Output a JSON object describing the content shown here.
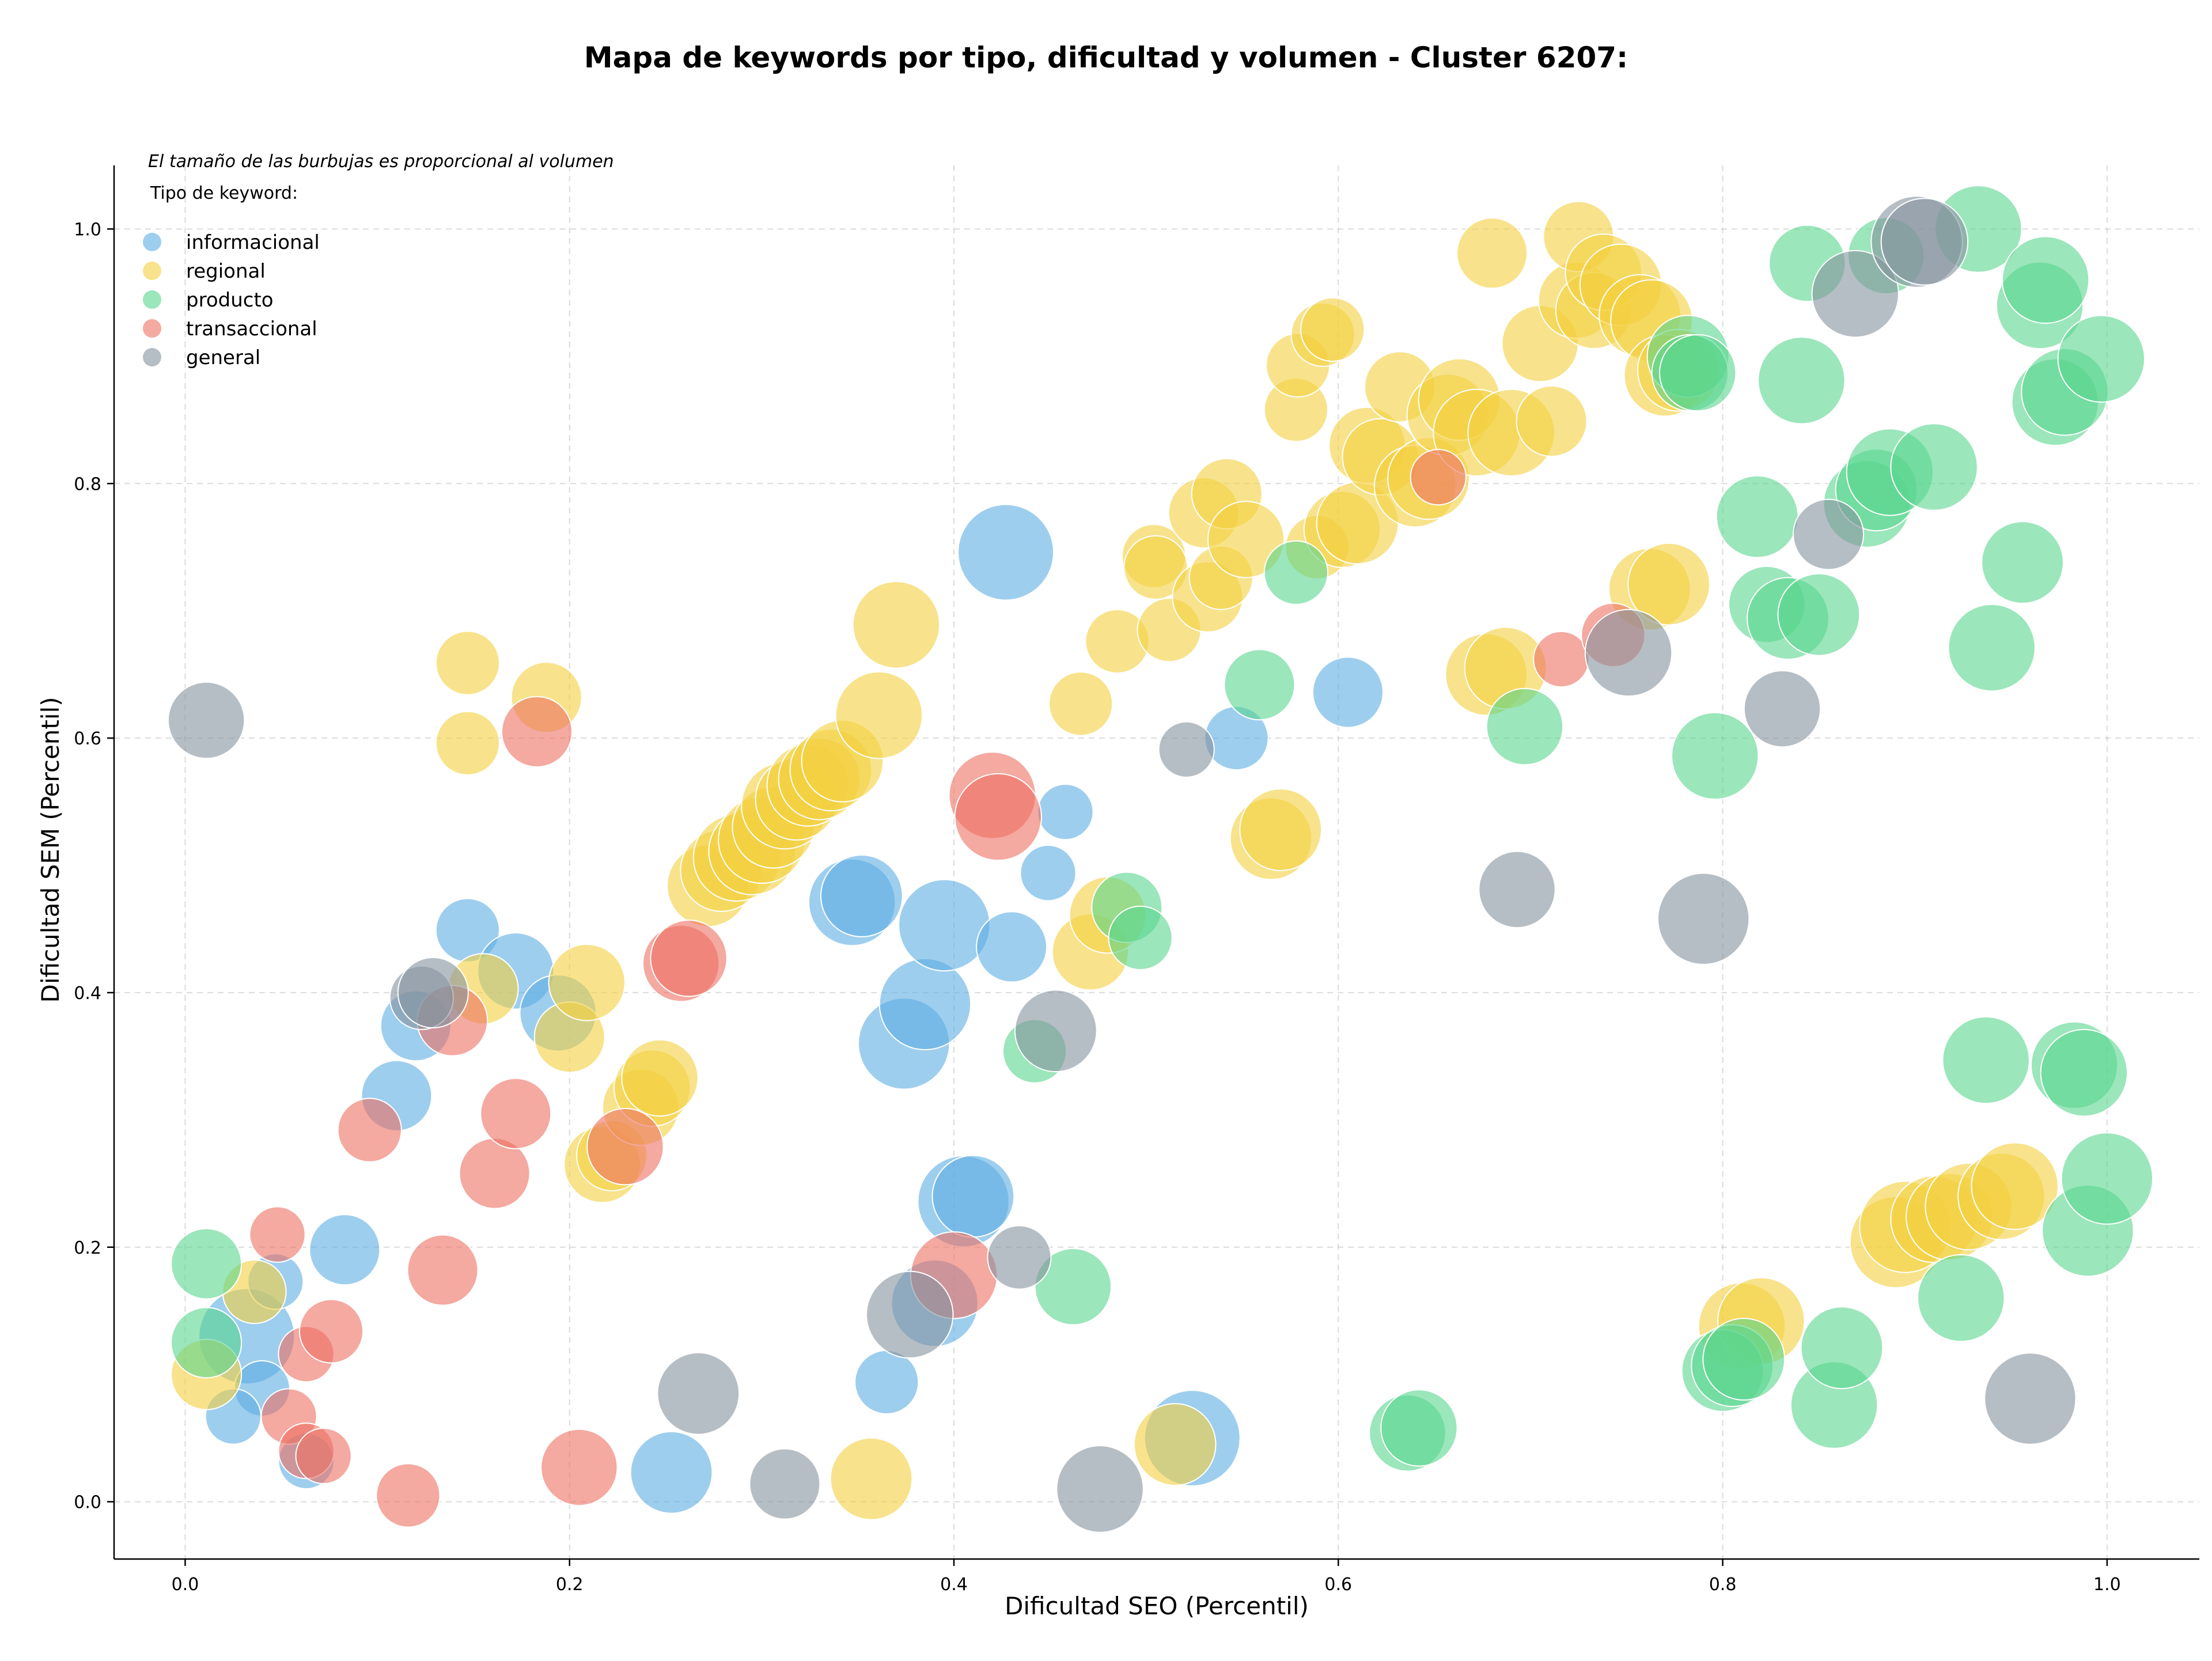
{
  "chart_data": {
    "type": "scatter",
    "title": "Mapa de keywords por tipo, dificultad y volumen - Cluster 6207:",
    "xlabel": "Dificultad SEO (Percentil)",
    "ylabel": "Dificultad SEM (Percentil)",
    "note": "El tamaño de las burbujas es proporcional al volumen",
    "legend_title": "Tipo de keyword:",
    "legend_position": "top-left",
    "xlim": [
      -0.037,
      1.048
    ],
    "ylim": [
      -0.045,
      1.05
    ],
    "xticks": [
      0.0,
      0.2,
      0.4,
      0.6,
      0.8,
      1.0
    ],
    "yticks": [
      0.0,
      0.2,
      0.4,
      0.6,
      0.8,
      1.0
    ],
    "xtick_labels": [
      "0.0",
      "0.2",
      "0.4",
      "0.6",
      "0.8",
      "1.0"
    ],
    "ytick_labels": [
      "0.0",
      "0.2",
      "0.4",
      "0.6",
      "0.8",
      "1.0"
    ],
    "grid": true,
    "size_scale_note": "s = relative volume (1 = smallest, 10 = largest)",
    "series": [
      {
        "name": "informacional",
        "color": "#5dade2",
        "points": [
          {
            "x": 0.032,
            "y": 0.13,
            "s": 9
          },
          {
            "x": 0.04,
            "y": 0.089,
            "s": 2
          },
          {
            "x": 0.047,
            "y": 0.173,
            "s": 2
          },
          {
            "x": 0.025,
            "y": 0.067,
            "s": 2
          },
          {
            "x": 0.063,
            "y": 0.032,
            "s": 2
          },
          {
            "x": 0.083,
            "y": 0.198,
            "s": 4
          },
          {
            "x": 0.11,
            "y": 0.319,
            "s": 4
          },
          {
            "x": 0.12,
            "y": 0.374,
            "s": 4
          },
          {
            "x": 0.147,
            "y": 0.449,
            "s": 3
          },
          {
            "x": 0.172,
            "y": 0.417,
            "s": 5
          },
          {
            "x": 0.194,
            "y": 0.384,
            "s": 5
          },
          {
            "x": 0.253,
            "y": 0.023,
            "s": 6
          },
          {
            "x": 0.365,
            "y": 0.094,
            "s": 3
          },
          {
            "x": 0.347,
            "y": 0.471,
            "s": 7
          },
          {
            "x": 0.352,
            "y": 0.476,
            "s": 6
          },
          {
            "x": 0.374,
            "y": 0.36,
            "s": 8
          },
          {
            "x": 0.385,
            "y": 0.391,
            "s": 8
          },
          {
            "x": 0.395,
            "y": 0.453,
            "s": 8
          },
          {
            "x": 0.39,
            "y": 0.156,
            "s": 7
          },
          {
            "x": 0.405,
            "y": 0.236,
            "s": 8
          },
          {
            "x": 0.41,
            "y": 0.24,
            "s": 6
          },
          {
            "x": 0.43,
            "y": 0.436,
            "s": 4
          },
          {
            "x": 0.427,
            "y": 0.746,
            "s": 9
          },
          {
            "x": 0.449,
            "y": 0.494,
            "s": 2
          },
          {
            "x": 0.458,
            "y": 0.542,
            "s": 2
          },
          {
            "x": 0.524,
            "y": 0.05,
            "s": 9
          },
          {
            "x": 0.547,
            "y": 0.6,
            "s": 3
          },
          {
            "x": 0.605,
            "y": 0.636,
            "s": 4
          }
        ]
      },
      {
        "name": "regional",
        "color": "#f4d03f",
        "points": [
          {
            "x": 0.011,
            "y": 0.1,
            "s": 4
          },
          {
            "x": 0.036,
            "y": 0.165,
            "s": 3
          },
          {
            "x": 0.147,
            "y": 0.659,
            "s": 3
          },
          {
            "x": 0.147,
            "y": 0.596,
            "s": 3
          },
          {
            "x": 0.155,
            "y": 0.403,
            "s": 4
          },
          {
            "x": 0.188,
            "y": 0.632,
            "s": 4
          },
          {
            "x": 0.2,
            "y": 0.365,
            "s": 4
          },
          {
            "x": 0.209,
            "y": 0.408,
            "s": 5
          },
          {
            "x": 0.217,
            "y": 0.265,
            "s": 5
          },
          {
            "x": 0.222,
            "y": 0.272,
            "s": 4
          },
          {
            "x": 0.237,
            "y": 0.31,
            "s": 5
          },
          {
            "x": 0.243,
            "y": 0.325,
            "s": 5
          },
          {
            "x": 0.247,
            "y": 0.333,
            "s": 5
          },
          {
            "x": 0.272,
            "y": 0.484,
            "s": 6
          },
          {
            "x": 0.279,
            "y": 0.496,
            "s": 6
          },
          {
            "x": 0.287,
            "y": 0.506,
            "s": 7
          },
          {
            "x": 0.295,
            "y": 0.511,
            "s": 7
          },
          {
            "x": 0.3,
            "y": 0.52,
            "s": 7
          },
          {
            "x": 0.306,
            "y": 0.53,
            "s": 6
          },
          {
            "x": 0.312,
            "y": 0.547,
            "s": 7
          },
          {
            "x": 0.318,
            "y": 0.552,
            "s": 6
          },
          {
            "x": 0.324,
            "y": 0.563,
            "s": 6
          },
          {
            "x": 0.33,
            "y": 0.568,
            "s": 6
          },
          {
            "x": 0.336,
            "y": 0.575,
            "s": 6
          },
          {
            "x": 0.342,
            "y": 0.582,
            "s": 6
          },
          {
            "x": 0.361,
            "y": 0.618,
            "s": 7
          },
          {
            "x": 0.37,
            "y": 0.689,
            "s": 7
          },
          {
            "x": 0.357,
            "y": 0.018,
            "s": 6
          },
          {
            "x": 0.466,
            "y": 0.627,
            "s": 3
          },
          {
            "x": 0.471,
            "y": 0.432,
            "s": 5
          },
          {
            "x": 0.48,
            "y": 0.461,
            "s": 5
          },
          {
            "x": 0.485,
            "y": 0.676,
            "s": 3
          },
          {
            "x": 0.504,
            "y": 0.743,
            "s": 3
          },
          {
            "x": 0.505,
            "y": 0.734,
            "s": 3
          },
          {
            "x": 0.512,
            "y": 0.685,
            "s": 3
          },
          {
            "x": 0.515,
            "y": 0.045,
            "s": 6
          },
          {
            "x": 0.532,
            "y": 0.711,
            "s": 4
          },
          {
            "x": 0.53,
            "y": 0.777,
            "s": 4
          },
          {
            "x": 0.539,
            "y": 0.726,
            "s": 3
          },
          {
            "x": 0.542,
            "y": 0.792,
            "s": 4
          },
          {
            "x": 0.552,
            "y": 0.756,
            "s": 5
          },
          {
            "x": 0.565,
            "y": 0.521,
            "s": 6
          },
          {
            "x": 0.57,
            "y": 0.528,
            "s": 6
          },
          {
            "x": 0.578,
            "y": 0.858,
            "s": 3
          },
          {
            "x": 0.579,
            "y": 0.893,
            "s": 3
          },
          {
            "x": 0.589,
            "y": 0.75,
            "s": 3
          },
          {
            "x": 0.592,
            "y": 0.917,
            "s": 3
          },
          {
            "x": 0.597,
            "y": 0.921,
            "s": 3
          },
          {
            "x": 0.602,
            "y": 0.764,
            "s": 5
          },
          {
            "x": 0.61,
            "y": 0.769,
            "s": 6
          },
          {
            "x": 0.615,
            "y": 0.83,
            "s": 5
          },
          {
            "x": 0.622,
            "y": 0.821,
            "s": 5
          },
          {
            "x": 0.632,
            "y": 0.876,
            "s": 4
          },
          {
            "x": 0.64,
            "y": 0.798,
            "s": 6
          },
          {
            "x": 0.647,
            "y": 0.804,
            "s": 6
          },
          {
            "x": 0.657,
            "y": 0.854,
            "s": 6
          },
          {
            "x": 0.663,
            "y": 0.866,
            "s": 6
          },
          {
            "x": 0.672,
            "y": 0.84,
            "s": 7
          },
          {
            "x": 0.677,
            "y": 0.65,
            "s": 6
          },
          {
            "x": 0.68,
            "y": 0.981,
            "s": 4
          },
          {
            "x": 0.687,
            "y": 0.655,
            "s": 6
          },
          {
            "x": 0.69,
            "y": 0.84,
            "s": 7
          },
          {
            "x": 0.705,
            "y": 0.91,
            "s": 5
          },
          {
            "x": 0.711,
            "y": 0.849,
            "s": 4
          },
          {
            "x": 0.724,
            "y": 0.944,
            "s": 5
          },
          {
            "x": 0.725,
            "y": 0.994,
            "s": 4
          },
          {
            "x": 0.733,
            "y": 0.936,
            "s": 5
          },
          {
            "x": 0.738,
            "y": 0.966,
            "s": 5
          },
          {
            "x": 0.747,
            "y": 0.956,
            "s": 6
          },
          {
            "x": 0.757,
            "y": 0.932,
            "s": 6
          },
          {
            "x": 0.763,
            "y": 0.928,
            "s": 6
          },
          {
            "x": 0.762,
            "y": 0.717,
            "s": 6
          },
          {
            "x": 0.772,
            "y": 0.721,
            "s": 6
          },
          {
            "x": 0.77,
            "y": 0.885,
            "s": 6
          },
          {
            "x": 0.777,
            "y": 0.889,
            "s": 6
          },
          {
            "x": 0.81,
            "y": 0.138,
            "s": 7
          },
          {
            "x": 0.82,
            "y": 0.142,
            "s": 7
          },
          {
            "x": 0.89,
            "y": 0.204,
            "s": 8
          },
          {
            "x": 0.895,
            "y": 0.216,
            "s": 8
          },
          {
            "x": 0.91,
            "y": 0.222,
            "s": 7
          },
          {
            "x": 0.918,
            "y": 0.224,
            "s": 7
          },
          {
            "x": 0.928,
            "y": 0.232,
            "s": 7
          },
          {
            "x": 0.945,
            "y": 0.24,
            "s": 7
          },
          {
            "x": 0.952,
            "y": 0.248,
            "s": 7
          }
        ]
      },
      {
        "name": "producto",
        "color": "#58d68d",
        "points": [
          {
            "x": 0.011,
            "y": 0.187,
            "s": 4
          },
          {
            "x": 0.011,
            "y": 0.125,
            "s": 4
          },
          {
            "x": 0.442,
            "y": 0.354,
            "s": 3
          },
          {
            "x": 0.462,
            "y": 0.169,
            "s": 5
          },
          {
            "x": 0.49,
            "y": 0.467,
            "s": 4
          },
          {
            "x": 0.497,
            "y": 0.443,
            "s": 3
          },
          {
            "x": 0.559,
            "y": 0.642,
            "s": 4
          },
          {
            "x": 0.578,
            "y": 0.73,
            "s": 3
          },
          {
            "x": 0.636,
            "y": 0.054,
            "s": 5
          },
          {
            "x": 0.642,
            "y": 0.058,
            "s": 5
          },
          {
            "x": 0.697,
            "y": 0.609,
            "s": 5
          },
          {
            "x": 0.782,
            "y": 0.9,
            "s": 6
          },
          {
            "x": 0.783,
            "y": 0.887,
            "s": 5
          },
          {
            "x": 0.787,
            "y": 0.887,
            "s": 5
          },
          {
            "x": 0.796,
            "y": 0.586,
            "s": 7
          },
          {
            "x": 0.8,
            "y": 0.103,
            "s": 6
          },
          {
            "x": 0.805,
            "y": 0.107,
            "s": 6
          },
          {
            "x": 0.811,
            "y": 0.112,
            "s": 6
          },
          {
            "x": 0.818,
            "y": 0.774,
            "s": 6
          },
          {
            "x": 0.823,
            "y": 0.705,
            "s": 5
          },
          {
            "x": 0.834,
            "y": 0.694,
            "s": 6
          },
          {
            "x": 0.841,
            "y": 0.881,
            "s": 7
          },
          {
            "x": 0.844,
            "y": 0.973,
            "s": 5
          },
          {
            "x": 0.85,
            "y": 0.697,
            "s": 6
          },
          {
            "x": 0.858,
            "y": 0.076,
            "s": 7
          },
          {
            "x": 0.862,
            "y": 0.121,
            "s": 6
          },
          {
            "x": 0.875,
            "y": 0.784,
            "s": 7
          },
          {
            "x": 0.88,
            "y": 0.795,
            "s": 6
          },
          {
            "x": 0.885,
            "y": 0.979,
            "s": 5
          },
          {
            "x": 0.887,
            "y": 0.809,
            "s": 7
          },
          {
            "x": 0.91,
            "y": 0.813,
            "s": 7
          },
          {
            "x": 0.924,
            "y": 0.16,
            "s": 7
          },
          {
            "x": 0.933,
            "y": 1.0,
            "s": 7
          },
          {
            "x": 0.937,
            "y": 0.347,
            "s": 7
          },
          {
            "x": 0.94,
            "y": 0.671,
            "s": 7
          },
          {
            "x": 0.956,
            "y": 0.738,
            "s": 6
          },
          {
            "x": 0.965,
            "y": 0.94,
            "s": 7
          },
          {
            "x": 0.968,
            "y": 0.96,
            "s": 7
          },
          {
            "x": 0.973,
            "y": 0.864,
            "s": 7
          },
          {
            "x": 0.978,
            "y": 0.872,
            "s": 7
          },
          {
            "x": 0.983,
            "y": 0.343,
            "s": 7
          },
          {
            "x": 0.988,
            "y": 0.337,
            "s": 7
          },
          {
            "x": 0.99,
            "y": 0.213,
            "s": 8
          },
          {
            "x": 0.997,
            "y": 0.898,
            "s": 7
          },
          {
            "x": 1.0,
            "y": 0.254,
            "s": 8
          }
        ]
      },
      {
        "name": "transaccional",
        "color": "#ec7063",
        "points": [
          {
            "x": 0.048,
            "y": 0.21,
            "s": 2
          },
          {
            "x": 0.054,
            "y": 0.067,
            "s": 2
          },
          {
            "x": 0.063,
            "y": 0.116,
            "s": 2
          },
          {
            "x": 0.063,
            "y": 0.04,
            "s": 2
          },
          {
            "x": 0.072,
            "y": 0.036,
            "s": 2
          },
          {
            "x": 0.076,
            "y": 0.134,
            "s": 3
          },
          {
            "x": 0.096,
            "y": 0.292,
            "s": 3
          },
          {
            "x": 0.116,
            "y": 0.005,
            "s": 3
          },
          {
            "x": 0.134,
            "y": 0.182,
            "s": 4
          },
          {
            "x": 0.139,
            "y": 0.378,
            "s": 4
          },
          {
            "x": 0.161,
            "y": 0.258,
            "s": 4
          },
          {
            "x": 0.172,
            "y": 0.305,
            "s": 4
          },
          {
            "x": 0.183,
            "y": 0.605,
            "s": 4
          },
          {
            "x": 0.205,
            "y": 0.027,
            "s": 5
          },
          {
            "x": 0.229,
            "y": 0.279,
            "s": 5
          },
          {
            "x": 0.258,
            "y": 0.423,
            "s": 5
          },
          {
            "x": 0.262,
            "y": 0.427,
            "s": 5
          },
          {
            "x": 0.4,
            "y": 0.178,
            "s": 7
          },
          {
            "x": 0.42,
            "y": 0.555,
            "s": 7
          },
          {
            "x": 0.423,
            "y": 0.538,
            "s": 7
          },
          {
            "x": 0.652,
            "y": 0.805,
            "s": 2
          },
          {
            "x": 0.716,
            "y": 0.662,
            "s": 2
          },
          {
            "x": 0.743,
            "y": 0.681,
            "s": 3
          }
        ]
      },
      {
        "name": "general",
        "color": "#85929e",
        "points": [
          {
            "x": 0.011,
            "y": 0.614,
            "s": 5
          },
          {
            "x": 0.123,
            "y": 0.396,
            "s": 3
          },
          {
            "x": 0.129,
            "y": 0.4,
            "s": 4
          },
          {
            "x": 0.267,
            "y": 0.085,
            "s": 6
          },
          {
            "x": 0.312,
            "y": 0.014,
            "s": 4
          },
          {
            "x": 0.377,
            "y": 0.147,
            "s": 7
          },
          {
            "x": 0.434,
            "y": 0.192,
            "s": 3
          },
          {
            "x": 0.453,
            "y": 0.37,
            "s": 6
          },
          {
            "x": 0.476,
            "y": 0.01,
            "s": 7
          },
          {
            "x": 0.521,
            "y": 0.591,
            "s": 2
          },
          {
            "x": 0.693,
            "y": 0.481,
            "s": 5
          },
          {
            "x": 0.751,
            "y": 0.667,
            "s": 7
          },
          {
            "x": 0.79,
            "y": 0.458,
            "s": 8
          },
          {
            "x": 0.831,
            "y": 0.623,
            "s": 5
          },
          {
            "x": 0.855,
            "y": 0.76,
            "s": 4
          },
          {
            "x": 0.869,
            "y": 0.949,
            "s": 7
          },
          {
            "x": 0.901,
            "y": 0.99,
            "s": 8
          },
          {
            "x": 0.905,
            "y": 0.99,
            "s": 7
          },
          {
            "x": 0.96,
            "y": 0.081,
            "s": 8
          }
        ]
      }
    ]
  }
}
